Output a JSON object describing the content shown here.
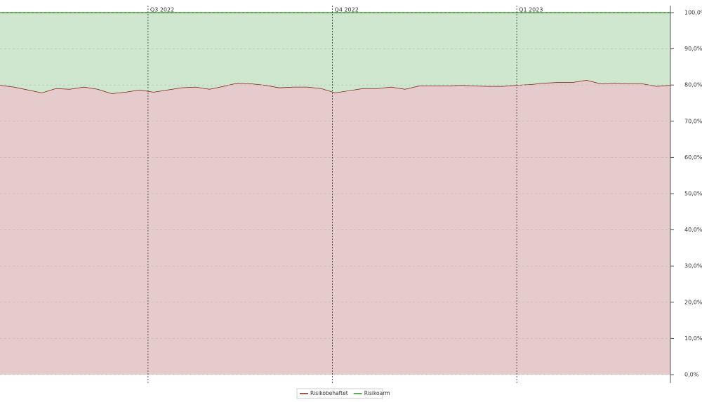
{
  "chart_data": {
    "type": "stacked-area",
    "categories": [
      null,
      null,
      null,
      null,
      null,
      null,
      null,
      null,
      null,
      null,
      null,
      null,
      null,
      null,
      null,
      null,
      null,
      null,
      null,
      null,
      null,
      null,
      null,
      null,
      null,
      null,
      null,
      null,
      null,
      null,
      null,
      null,
      null,
      null,
      null,
      null,
      null,
      null,
      null,
      null,
      null,
      null,
      null,
      null,
      null,
      null,
      null,
      null,
      null
    ],
    "xlim": [
      0,
      48
    ],
    "xticks": [
      {
        "value": 10.6,
        "label": "Q3 2022"
      },
      {
        "value": 23.8,
        "label": "Q4 2022"
      },
      {
        "value": 37.0,
        "label": "Q1 2023"
      }
    ],
    "series": [
      {
        "name": "Risikobehaftet",
        "color": "#7b1c10",
        "fill": "#e5cbcb",
        "values": [
          80.0,
          79.5,
          78.7,
          77.9,
          79.1,
          78.9,
          79.5,
          78.9,
          77.7,
          78.1,
          78.7,
          78.1,
          78.7,
          79.3,
          79.5,
          78.9,
          79.7,
          80.6,
          80.4,
          80.0,
          79.3,
          79.5,
          79.5,
          79.1,
          77.9,
          78.5,
          79.1,
          79.1,
          79.5,
          78.9,
          79.8,
          79.8,
          79.8,
          80.0,
          79.8,
          79.7,
          79.7,
          80.0,
          80.2,
          80.6,
          80.8,
          80.8,
          81.4,
          80.4,
          80.6,
          80.4,
          80.4,
          79.7,
          80.0
        ]
      },
      {
        "name": "Risikoarm",
        "color": "#2e8b22",
        "fill": "#cfe6cf",
        "values": [
          20.0,
          20.5,
          21.3,
          22.1,
          20.9,
          21.1,
          20.5,
          21.1,
          22.3,
          21.9,
          21.3,
          21.9,
          21.3,
          20.7,
          20.5,
          21.1,
          20.3,
          19.4,
          19.6,
          20.0,
          20.7,
          20.5,
          20.5,
          20.9,
          22.1,
          21.5,
          20.9,
          20.9,
          20.5,
          21.1,
          20.2,
          20.2,
          20.2,
          20.0,
          20.2,
          20.3,
          20.3,
          20.0,
          19.8,
          19.4,
          19.2,
          19.2,
          18.6,
          19.6,
          19.4,
          19.6,
          19.6,
          20.3,
          20.0
        ]
      }
    ],
    "ylim": [
      0,
      100
    ],
    "yticks": [
      {
        "value": 0,
        "label": "0,0%"
      },
      {
        "value": 10,
        "label": "10,0%"
      },
      {
        "value": 20,
        "label": "20,0%"
      },
      {
        "value": 30,
        "label": "30,0%"
      },
      {
        "value": 40,
        "label": "40,0%"
      },
      {
        "value": 50,
        "label": "50,0%"
      },
      {
        "value": 60,
        "label": "60,0%"
      },
      {
        "value": 70,
        "label": "70,0%"
      },
      {
        "value": 80,
        "label": "80,0%"
      },
      {
        "value": 90,
        "label": "90,0%"
      },
      {
        "value": 100,
        "label": "100,0%"
      }
    ],
    "grid": true
  }
}
